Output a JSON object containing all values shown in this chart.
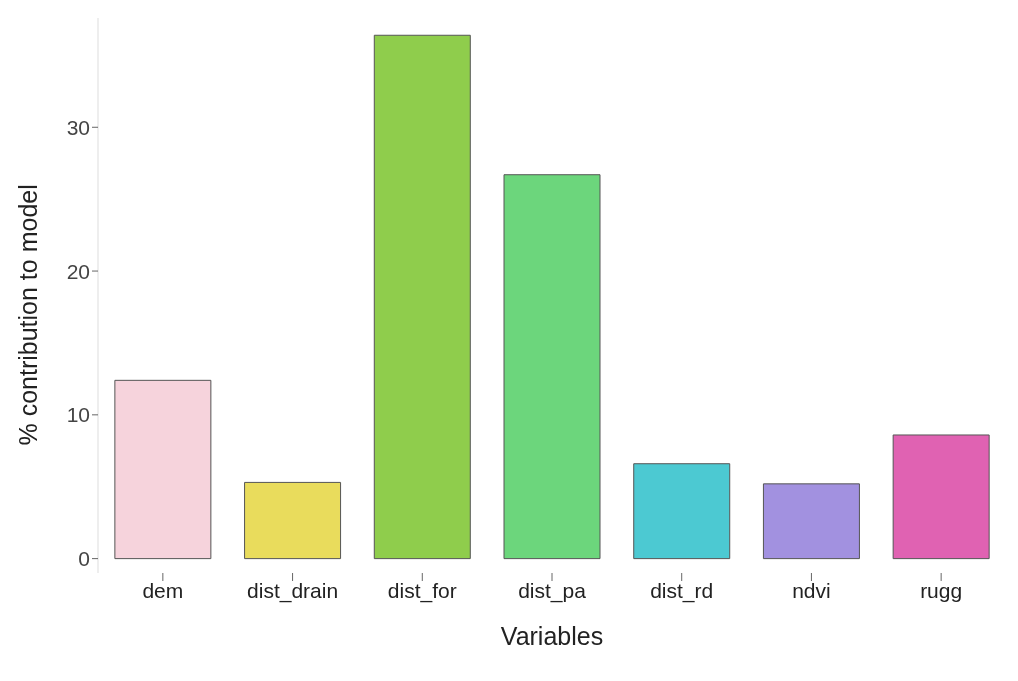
{
  "chart_data": {
    "type": "bar",
    "xlabel": "Variables",
    "ylabel": "% contribution to model",
    "categories": [
      "dem",
      "dist_drain",
      "dist_for",
      "dist_pa",
      "dist_rd",
      "ndvi",
      "rugg"
    ],
    "values": [
      12.4,
      5.3,
      36.4,
      26.7,
      6.6,
      5.2,
      8.6
    ],
    "colors": [
      "#f6d3dc",
      "#e9dc5c",
      "#8fcd4c",
      "#6cd67c",
      "#4cc9d2",
      "#a291e0",
      "#e062b2"
    ],
    "ylim": [
      -1,
      37.6
    ],
    "yticks": [
      0,
      10,
      20,
      30
    ],
    "grid": false
  }
}
